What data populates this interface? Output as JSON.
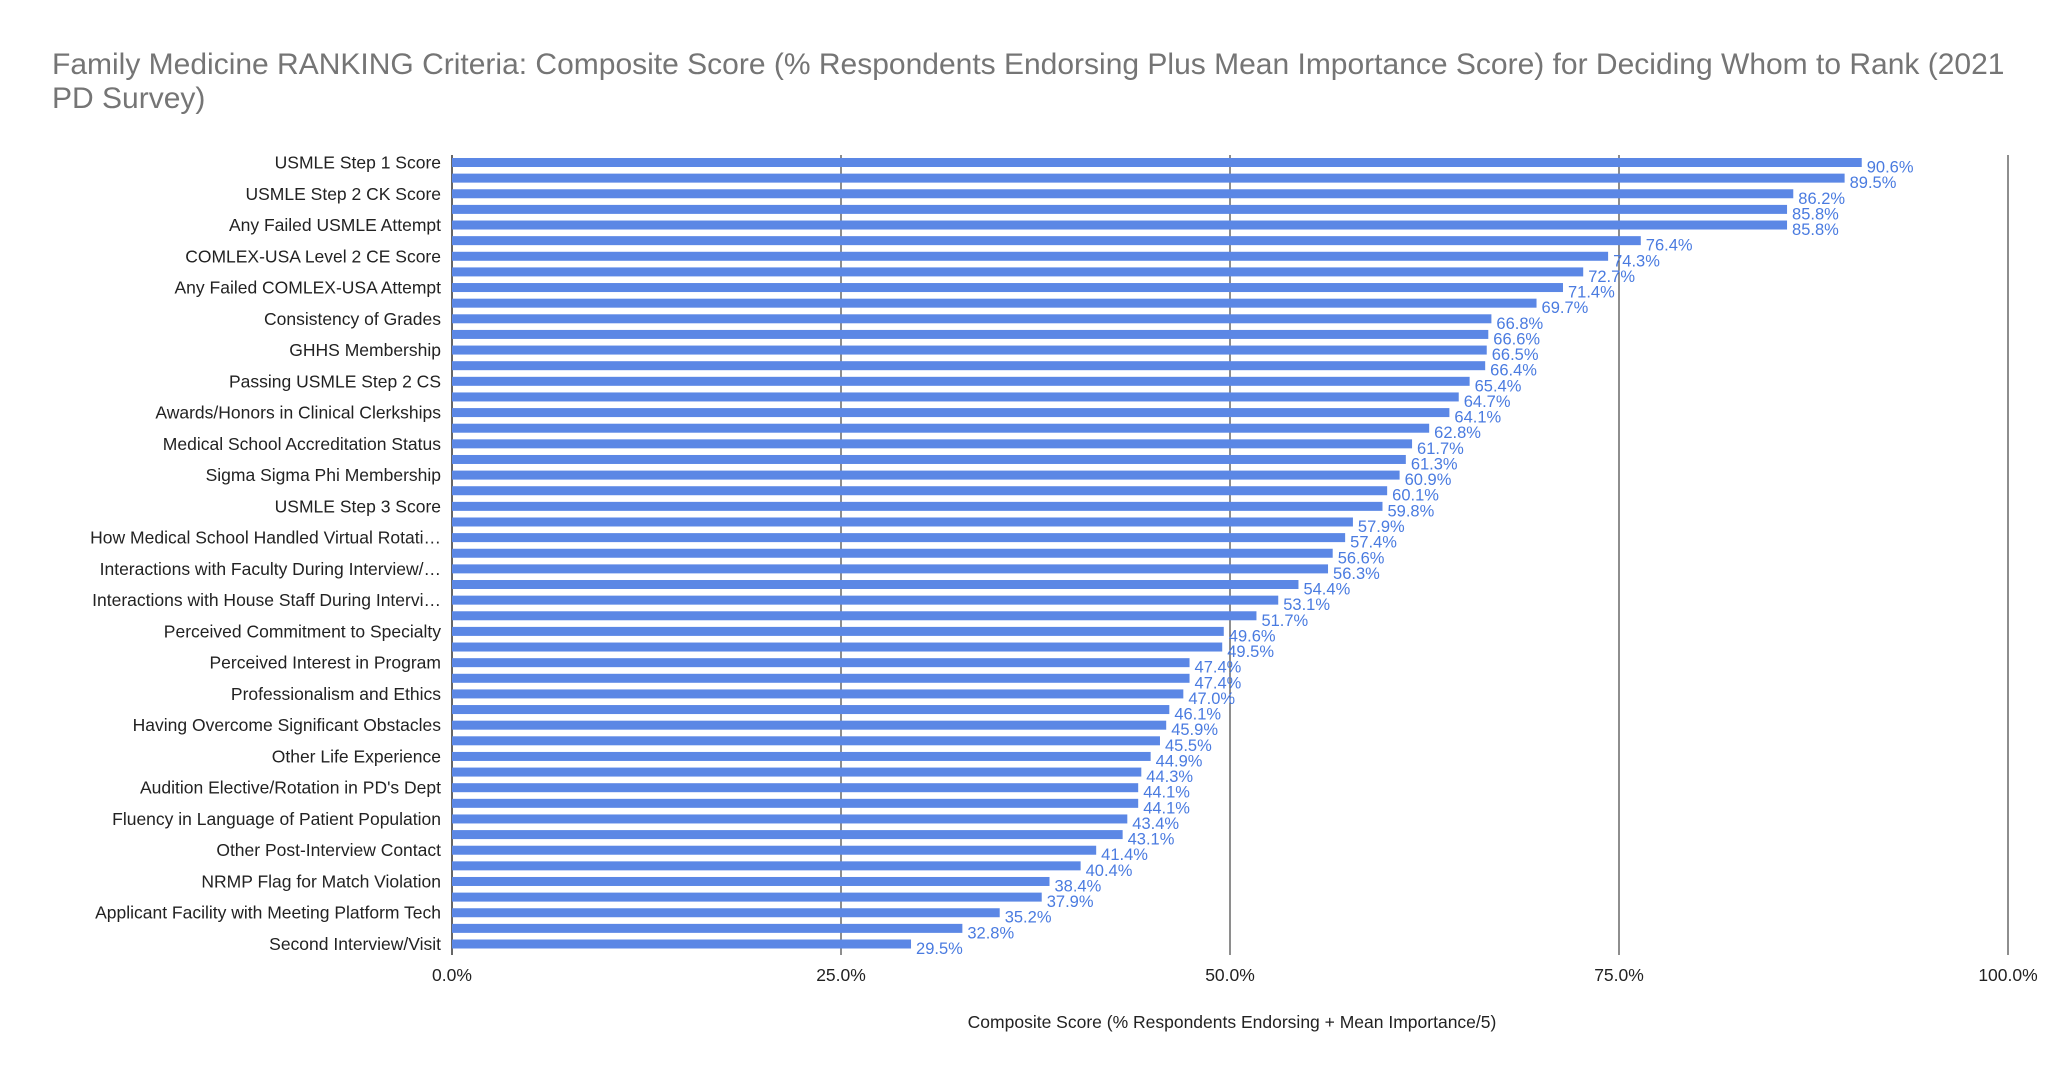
{
  "chart_data": {
    "type": "bar",
    "orientation": "horizontal",
    "title": "Family Medicine  RANKING Criteria: Composite Score (% Respondents Endorsing Plus Mean Importance Score) for Deciding Whom to Rank (2021 PD Survey)",
    "xlabel": "Composite Score (% Respondents Endorsing + Mean Importance/5)",
    "ylabel": "",
    "xlim": [
      0,
      100
    ],
    "x_ticks": [
      "0.0%",
      "25.0%",
      "50.0%",
      "75.0%",
      "100.0%"
    ],
    "grid": "vertical",
    "legend": "none",
    "bar_color": "#5b87e5",
    "label_color": "#4a7be0",
    "categories": [
      "USMLE Step 1 Score",
      "",
      "USMLE Step 2 CK Score",
      "",
      "Any Failed USMLE Attempt",
      "",
      "COMLEX-USA Level 2 CE Score",
      "",
      "Any Failed COMLEX-USA Attempt",
      "",
      "Consistency of Grades",
      "",
      "GHHS Membership",
      "",
      "Passing USMLE Step 2 CS",
      "",
      "Awards/Honors in Clinical Clerkships",
      "",
      "Medical School Accreditation Status",
      "",
      "Sigma Sigma Phi Membership",
      "",
      "USMLE Step 3 Score",
      "",
      "How Medical School Handled Virtual Rotati…",
      "",
      "Interactions with Faculty During Interview/…",
      "",
      "Interactions with House Staff During Intervi…",
      "",
      "Perceived Commitment to Specialty",
      "",
      "Perceived Interest in Program",
      "",
      "Professionalism and Ethics",
      "",
      "Having Overcome Significant Obstacles",
      "",
      "Other Life Experience",
      "",
      "Audition Elective/Rotation in PD's Dept",
      "",
      "Fluency in Language of Patient Population",
      "",
      "Other Post-Interview Contact",
      "",
      "NRMP Flag for Match Violation",
      "",
      "Applicant Facility with Meeting Platform Tech",
      "",
      "Second Interview/Visit"
    ],
    "values": [
      90.6,
      89.5,
      86.2,
      85.8,
      85.8,
      76.4,
      74.3,
      72.7,
      71.4,
      69.7,
      66.8,
      66.6,
      66.5,
      66.4,
      65.4,
      64.7,
      64.1,
      62.8,
      61.7,
      61.3,
      60.9,
      60.1,
      59.8,
      57.9,
      57.4,
      56.6,
      56.3,
      54.4,
      53.1,
      51.7,
      49.6,
      49.5,
      47.4,
      47.4,
      47.0,
      46.1,
      45.9,
      45.5,
      44.9,
      44.3,
      44.1,
      44.1,
      43.4,
      43.1,
      41.4,
      40.4,
      38.4,
      37.9,
      35.2,
      32.8,
      29.5
    ],
    "value_labels": [
      "90.6%",
      "89.5%",
      "86.2%",
      "85.8%",
      "85.8%",
      "76.4%",
      "74.3%",
      "72.7%",
      "71.4%",
      "69.7%",
      "66.8%",
      "66.6%",
      "66.5%",
      "66.4%",
      "65.4%",
      "64.7%",
      "64.1%",
      "62.8%",
      "61.7%",
      "61.3%",
      "60.9%",
      "60.1%",
      "59.8%",
      "57.9%",
      "57.4%",
      "56.6%",
      "56.3%",
      "54.4%",
      "53.1%",
      "51.7%",
      "49.6%",
      "49.5%",
      "47.4%",
      "47.4%",
      "47.0%",
      "46.1%",
      "45.9%",
      "45.5%",
      "44.9%",
      "44.3%",
      "44.1%",
      "44.1%",
      "43.4%",
      "43.1%",
      "41.4%",
      "40.4%",
      "38.4%",
      "37.9%",
      "35.2%",
      "32.8%",
      "29.5%"
    ]
  }
}
